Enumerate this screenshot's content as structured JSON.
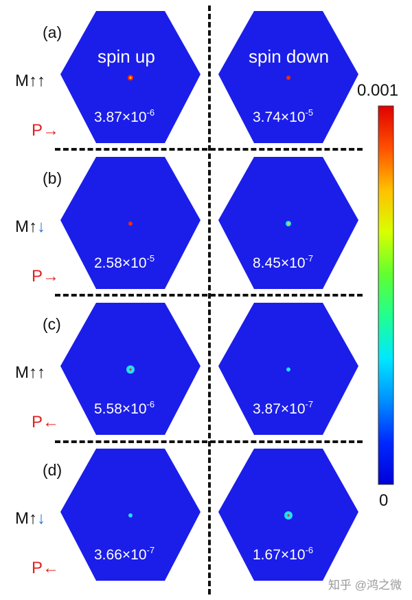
{
  "column_headers": [
    "spin up",
    "spin down"
  ],
  "panels": [
    {
      "label": "(a)",
      "magnetization": {
        "main": "M↑",
        "second": "↑",
        "second_color": "#111111"
      },
      "polarization": "P→",
      "values": [
        {
          "mantissa": "3.87×10",
          "exponent": "-6"
        },
        {
          "mantissa": "3.74×10",
          "exponent": "-5"
        }
      ]
    },
    {
      "label": "(b)",
      "magnetization": {
        "main": "M↑",
        "second": "↓",
        "second_color": "#1e6fd0"
      },
      "polarization": "P→",
      "values": [
        {
          "mantissa": "2.58×10",
          "exponent": "-5"
        },
        {
          "mantissa": "8.45×10",
          "exponent": "-7"
        }
      ]
    },
    {
      "label": "(c)",
      "magnetization": {
        "main": "M↑",
        "second": "↑",
        "second_color": "#111111"
      },
      "polarization": "P←",
      "values": [
        {
          "mantissa": "5.58×10",
          "exponent": "-6"
        },
        {
          "mantissa": "3.87×10",
          "exponent": "-7"
        }
      ]
    },
    {
      "label": "(d)",
      "magnetization": {
        "main": "M↑",
        "second": "↓",
        "second_color": "#1e6fd0"
      },
      "polarization": "P←",
      "values": [
        {
          "mantissa": "3.66×10",
          "exponent": "-7"
        },
        {
          "mantissa": "1.67×10",
          "exponent": "-6"
        }
      ]
    }
  ],
  "colorbar": {
    "max_label": "0.001",
    "min_label": "0",
    "colors": [
      "#0000d8",
      "#0028ff",
      "#0090ff",
      "#00e8ff",
      "#20ff90",
      "#60ff30",
      "#d8ff00",
      "#ffc000",
      "#ff5000",
      "#e00000"
    ]
  },
  "colors": {
    "hexagon_fill": "#1b1ee8",
    "hot_spot": "#ff2a00",
    "warm_spot": "#ffd000",
    "cool_spot": "#22e0ff"
  },
  "watermark": "知乎 @鸿之微"
}
